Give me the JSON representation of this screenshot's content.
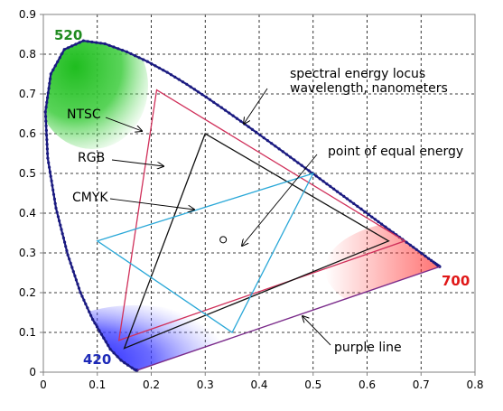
{
  "chart_data": {
    "type": "scatter",
    "xlim": [
      0,
      0.8
    ],
    "ylim": [
      0,
      0.9
    ],
    "x_ticks": [
      "0",
      "0.1",
      "0.2",
      "0.3",
      "0.4",
      "0.5",
      "0.6",
      "0.7",
      "0.8"
    ],
    "y_ticks": [
      "0",
      "0.1",
      "0.2",
      "0.3",
      "0.4",
      "0.5",
      "0.6",
      "0.7",
      "0.8",
      "0.9"
    ],
    "grid": "dashed",
    "colors": {
      "locus": "#1a1a80",
      "ntsc": "#d0305a",
      "rgb": "#111111",
      "cmyk": "#2aa8d8",
      "purple_line": "#7a2a8a",
      "green": "#1f8a1f",
      "red": "#e01818",
      "blue": "#1e2ab8"
    },
    "spectral_locus": [
      [
        0.1741,
        0.005
      ],
      [
        0.1738,
        0.0049
      ],
      [
        0.1733,
        0.0048
      ],
      [
        0.1726,
        0.0048
      ],
      [
        0.1714,
        0.0051
      ],
      [
        0.1689,
        0.0069
      ],
      [
        0.1644,
        0.0109
      ],
      [
        0.1566,
        0.0177
      ],
      [
        0.144,
        0.0297
      ],
      [
        0.1241,
        0.0578
      ],
      [
        0.0913,
        0.1327
      ],
      [
        0.0687,
        0.2007
      ],
      [
        0.0454,
        0.295
      ],
      [
        0.0235,
        0.4127
      ],
      [
        0.0082,
        0.5384
      ],
      [
        0.0039,
        0.6548
      ],
      [
        0.0139,
        0.7502
      ],
      [
        0.0389,
        0.812
      ],
      [
        0.0743,
        0.8338
      ],
      [
        0.1142,
        0.8262
      ],
      [
        0.1547,
        0.8059
      ],
      [
        0.1929,
        0.7816
      ],
      [
        0.2296,
        0.7543
      ],
      [
        0.2658,
        0.7243
      ],
      [
        0.3016,
        0.6923
      ],
      [
        0.3373,
        0.6589
      ],
      [
        0.3731,
        0.6245
      ],
      [
        0.4087,
        0.5896
      ],
      [
        0.4441,
        0.5547
      ],
      [
        0.4788,
        0.5202
      ],
      [
        0.5125,
        0.4866
      ],
      [
        0.5448,
        0.4544
      ],
      [
        0.5752,
        0.4242
      ],
      [
        0.6029,
        0.3965
      ],
      [
        0.627,
        0.3725
      ],
      [
        0.6482,
        0.3514
      ],
      [
        0.6658,
        0.334
      ],
      [
        0.6801,
        0.3197
      ],
      [
        0.6915,
        0.3083
      ],
      [
        0.7006,
        0.2993
      ],
      [
        0.7079,
        0.292
      ],
      [
        0.714,
        0.2859
      ],
      [
        0.719,
        0.2809
      ],
      [
        0.723,
        0.277
      ],
      [
        0.726,
        0.274
      ],
      [
        0.7283,
        0.2717
      ],
      [
        0.73,
        0.27
      ],
      [
        0.7311,
        0.2689
      ],
      [
        0.732,
        0.268
      ],
      [
        0.7327,
        0.2673
      ],
      [
        0.7334,
        0.2666
      ],
      [
        0.734,
        0.266
      ],
      [
        0.7344,
        0.2656
      ],
      [
        0.7346,
        0.2654
      ],
      [
        0.7347,
        0.2653
      ]
    ],
    "gamuts": [
      {
        "name": "NTSC",
        "points": [
          [
            0.67,
            0.33
          ],
          [
            0.21,
            0.71
          ],
          [
            0.14,
            0.08
          ]
        ]
      },
      {
        "name": "RGB",
        "points": [
          [
            0.64,
            0.33
          ],
          [
            0.3,
            0.6
          ],
          [
            0.15,
            0.06
          ]
        ]
      },
      {
        "name": "CMYK",
        "points": [
          [
            0.1,
            0.33
          ],
          [
            0.5,
            0.5
          ],
          [
            0.35,
            0.1
          ]
        ]
      }
    ],
    "equal_energy_point": [
      0.3333,
      0.3333
    ],
    "labels": {
      "w520": "520",
      "w420": "420",
      "w700": "700",
      "ntsc": "NTSC",
      "rgb": "RGB",
      "cmyk": "CMYK",
      "locus_line1": "spectral energy locus",
      "locus_line2": "wavelength, nanometers",
      "equal_energy": "point of equal energy",
      "purple_line": "purple line"
    }
  }
}
